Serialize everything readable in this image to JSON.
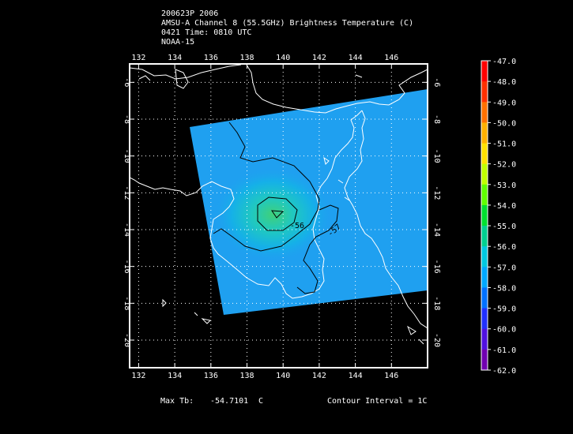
{
  "header": {
    "line1": "200623P 2006",
    "line2": "AMSU-A Channel 8 (55.5GHz) Brightness Temperature (C)",
    "line3": "0421 Time: 0810 UTC",
    "line4": "NOAA-15"
  },
  "map": {
    "lon_labels": [
      "132",
      "134",
      "136",
      "138",
      "140",
      "142",
      "144",
      "146"
    ],
    "lat_labels": [
      "-6",
      "-8",
      "-10",
      "-12",
      "-14",
      "-16",
      "-18",
      "-20"
    ],
    "lon_values": [
      132,
      134,
      136,
      138,
      140,
      142,
      144,
      146
    ],
    "lat_values": [
      -6,
      -8,
      -10,
      -12,
      -14,
      -16,
      -18,
      -20
    ],
    "lon_range": [
      131.5,
      148
    ],
    "lat_range": [
      -21.5,
      -5
    ],
    "contour_labels": [
      "-56",
      "-57"
    ],
    "grid": true,
    "coastline_color": "#ffffff",
    "contour_color": "#000000",
    "swath_color": "#1fa0f0",
    "peak_color": "#3fd07a"
  },
  "colorbar": {
    "labels": [
      "-47.0",
      "-48.0",
      "-49.0",
      "-50.0",
      "-51.0",
      "-52.0",
      "-53.0",
      "-54.0",
      "-55.0",
      "-56.0",
      "-57.0",
      "-58.0",
      "-59.0",
      "-60.0",
      "-61.0",
      "-62.0"
    ],
    "colors": [
      "#ff0000",
      "#ff3000",
      "#ff7000",
      "#ffb000",
      "#ffe000",
      "#c0ff00",
      "#60ff00",
      "#00e030",
      "#00d090",
      "#00c8e0",
      "#00a8ff",
      "#0070ff",
      "#2030ff",
      "#5010e0",
      "#7000b0",
      "#ffffff"
    ]
  },
  "footer": {
    "max_label": "Max Tb:",
    "max_value": "-54.7101",
    "max_unit": "C",
    "contour_label": "Contour Interval = 1C"
  }
}
